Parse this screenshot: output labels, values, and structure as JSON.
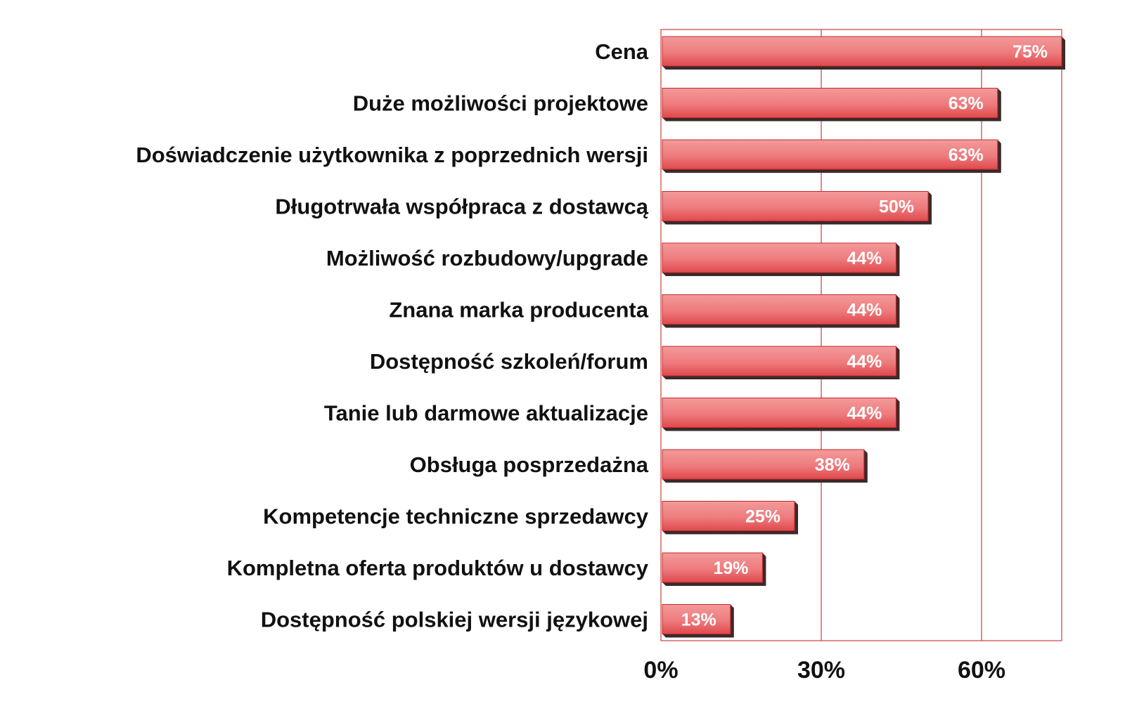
{
  "chart_data": {
    "type": "bar",
    "orientation": "horizontal",
    "categories": [
      "Cena",
      "Duże możliwości projektowe",
      "Doświadczenie użytkownika z poprzednich wersji",
      "Długotrwała współpraca z dostawcą",
      "Możliwość rozbudowy/upgrade",
      "Znana marka producenta",
      "Dostępność szkoleń/forum",
      "Tanie lub darmowe aktualizacje",
      "Obsługa posprzedażna",
      "Kompetencje techniczne sprzedawcy",
      "Kompletna oferta produktów u dostawcy",
      "Dostępność polskiej wersji językowej"
    ],
    "values": [
      75,
      63,
      63,
      50,
      44,
      44,
      44,
      44,
      38,
      25,
      19,
      13
    ],
    "value_labels": [
      "75%",
      "63%",
      "63%",
      "50%",
      "44%",
      "44%",
      "44%",
      "44%",
      "38%",
      "25%",
      "19%",
      "13%"
    ],
    "x_ticks": [
      0,
      30,
      60
    ],
    "x_tick_labels": [
      "0%",
      "30%",
      "60%"
    ],
    "xlim": [
      0,
      75
    ],
    "grid": true,
    "legend": "none",
    "title": "",
    "xlabel": "",
    "ylabel": "",
    "colors": {
      "bar_fill_light": "#f39a9a",
      "bar_fill_dark": "#e0484c",
      "bar_shadow": "#3a2a2a",
      "bar_edge": "#c8282c",
      "grid_line": "#d14a4a",
      "text": "#111111",
      "value_text": "#ffffff"
    }
  }
}
